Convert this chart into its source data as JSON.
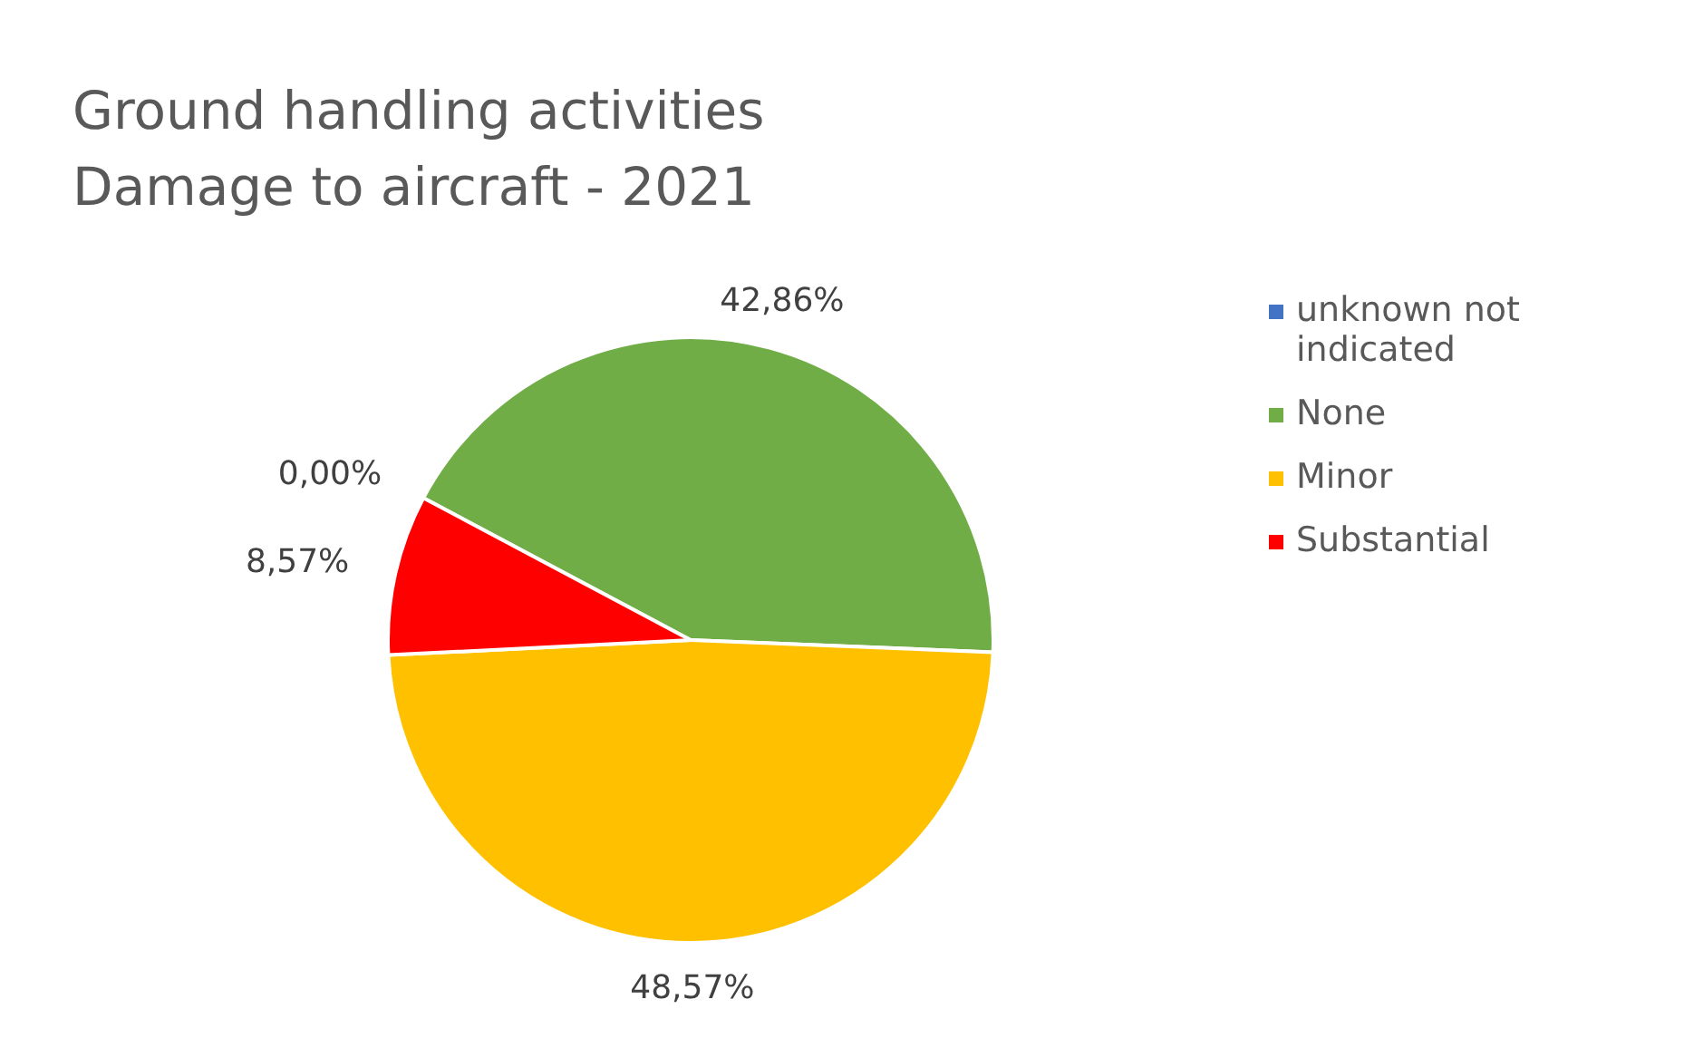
{
  "chart_data": {
    "type": "pie",
    "title": "Ground handling activities\nDamage to aircraft - 2021",
    "categories": [
      "unknown not indicated",
      "None",
      "Minor",
      "Substantial"
    ],
    "values": [
      0,
      42.86,
      48.57,
      8.57
    ],
    "value_labels": [
      "0,00%",
      "42,86%",
      "48,57%",
      "8,57%"
    ],
    "colors": [
      "#4472c4",
      "#70ad47",
      "#ffc000",
      "#ff0000"
    ],
    "legend": "right"
  }
}
